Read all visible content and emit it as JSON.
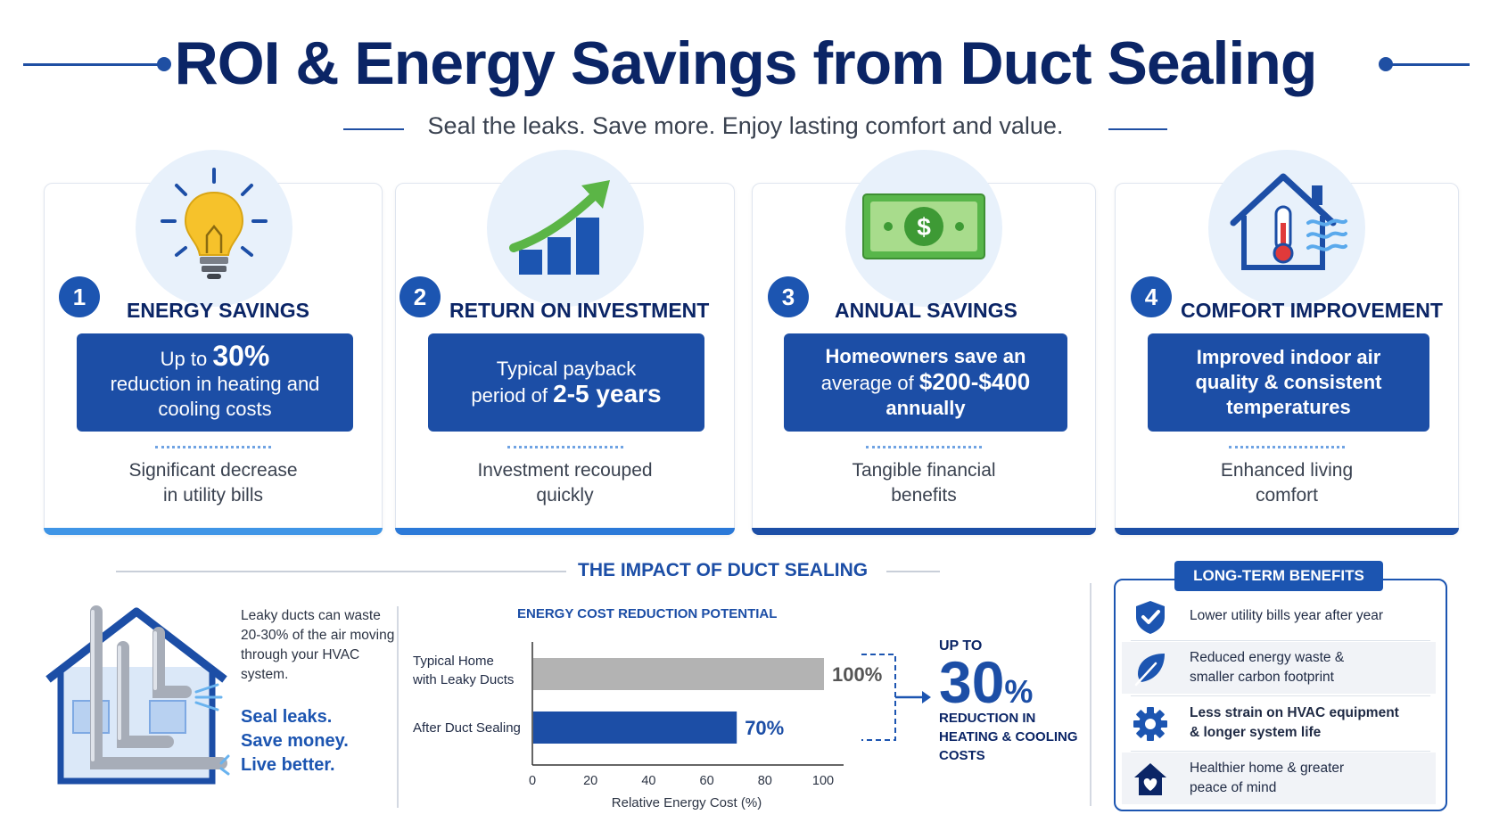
{
  "header": {
    "title": "ROI & Energy Savings from Duct Sealing",
    "subtitle": "Seal the leaks. Save more. Enjoy lasting comfort and value."
  },
  "colors": {
    "navy": "#0b2566",
    "primary_blue": "#1c4ea6",
    "accent_blue": "#1c55b1",
    "light_blue": "#e8f1fb",
    "bar_gray": "#b3b3b3",
    "bulb_yellow": "#f6c22b",
    "money_green": "#58b64a",
    "arrow_green": "#5bb546",
    "thermo_red": "#e03a3a"
  },
  "cards": [
    {
      "number": "1",
      "title": "ENERGY SAVINGS",
      "icon": "lightbulb-icon",
      "box_line1_pre": "Up to ",
      "box_line1_em": "30%",
      "box_line2": "reduction in heating and",
      "box_line3": "cooling costs",
      "footer_line1": "Significant decrease",
      "footer_line2": "in utility bills"
    },
    {
      "number": "2",
      "title": "RETURN ON INVESTMENT",
      "icon": "growth-chart-icon",
      "box_line1": "Typical payback",
      "box_line2_pre": "period of ",
      "box_line2_em": "2-5 years",
      "footer_line1": "Investment recouped",
      "footer_line2": "quickly"
    },
    {
      "number": "3",
      "title": "ANNUAL SAVINGS",
      "icon": "money-bill-icon",
      "box_line1": "Homeowners save an",
      "box_line2_pre": "average of ",
      "box_line2_em": "$200-$400",
      "box_line3": "annually",
      "footer_line1": "Tangible financial",
      "footer_line2": "benefits"
    },
    {
      "number": "4",
      "title": "COMFORT IMPROVEMENT",
      "icon": "house-thermometer-icon",
      "box_line1": "Improved indoor air",
      "box_line2": "quality & consistent",
      "box_line3": "temperatures",
      "footer_line1": "Enhanced living",
      "footer_line2": "comfort"
    }
  ],
  "impact": {
    "title": "THE IMPACT OF DUCT SEALING",
    "leaky_text": "Leaky ducts can waste 20-30% of the air moving through your HVAC system.",
    "slogan": [
      "Seal leaks.",
      "Save money.",
      "Live better."
    ],
    "callout_upto": "UP TO",
    "callout_number": "30",
    "callout_percent": "%",
    "callout_text": "REDUCTION IN HEATING & COOLING COSTS"
  },
  "chart_data": {
    "type": "bar",
    "orientation": "horizontal",
    "title": "ENERGY COST REDUCTION POTENTIAL",
    "categories": [
      "Typical Home with Leaky Ducts",
      "After Duct Sealing"
    ],
    "category_lines": [
      [
        "Typical Home",
        "with Leaky Ducts"
      ],
      [
        "After Duct Sealing"
      ]
    ],
    "values": [
      100,
      70
    ],
    "value_labels": [
      "100%",
      "70%"
    ],
    "bar_colors": [
      "#b3b3b3",
      "#1c4ea6"
    ],
    "label_colors": [
      "#555555",
      "#1c4ea6"
    ],
    "xlabel": "Relative Energy Cost (%)",
    "xlim": [
      0,
      100
    ],
    "xticks": [
      0,
      20,
      40,
      60,
      80,
      100
    ],
    "grid": false
  },
  "long_term": {
    "title": "LONG-TERM BENEFITS",
    "items": [
      {
        "icon": "shield-check-icon",
        "line1": "Lower utility bills year after year",
        "line2": ""
      },
      {
        "icon": "leaf-icon",
        "line1": "Reduced energy waste &",
        "line2": "smaller carbon footprint"
      },
      {
        "icon": "gear-icon",
        "line1": "Less strain on HVAC equipment",
        "line2": "& longer system life"
      },
      {
        "icon": "home-heart-icon",
        "line1": "Healthier home & greater",
        "line2": "peace of mind"
      }
    ]
  }
}
